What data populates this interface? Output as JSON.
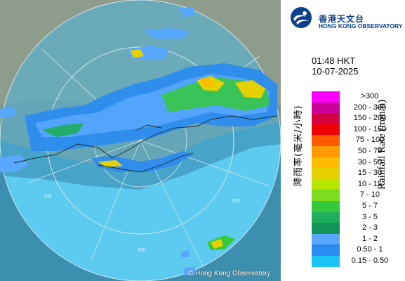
{
  "map": {
    "range_label_left": "200",
    "range_label_bottom": "200",
    "range_label_right": "200",
    "copyright": "© Hong Kong Observatory"
  },
  "header": {
    "org_name_cn": "香港天文台",
    "org_name_en": "HONG KONG OBSERVATORY"
  },
  "timestamp": {
    "time": "01:48 HKT",
    "date": "10-07-2025"
  },
  "legend": {
    "title_en": "Rainfall Rate (mm/h)",
    "title_cn": "降雨率(毫米/小時)",
    "items": [
      {
        "label": ">300",
        "color": "#ff00ff"
      },
      {
        "label": "200 - 300",
        "color": "#cc0099"
      },
      {
        "label": "150 - 200",
        "color": "#d4003f"
      },
      {
        "label": "100 - 150",
        "color": "#f00000"
      },
      {
        "label": "75 - 100",
        "color": "#ff5a00"
      },
      {
        "label": "50 - 75",
        "color": "#ff9900"
      },
      {
        "label": "30 - 50",
        "color": "#ffbb00"
      },
      {
        "label": "15 - 30",
        "color": "#e5d000"
      },
      {
        "label": "10 - 15",
        "color": "#b4e600"
      },
      {
        "label": "7 - 10",
        "color": "#7ddc1e"
      },
      {
        "label": "5 - 7",
        "color": "#35c93c"
      },
      {
        "label": "3 - 5",
        "color": "#1fae5a"
      },
      {
        "label": "2 - 3",
        "color": "#11935a"
      },
      {
        "label": "1 - 2",
        "color": "#58a8ff"
      },
      {
        "label": "0.50 - 1",
        "color": "#2a8bf0"
      },
      {
        "label": "0.15 - 0.50",
        "color": "#1cc4f4"
      }
    ]
  }
}
